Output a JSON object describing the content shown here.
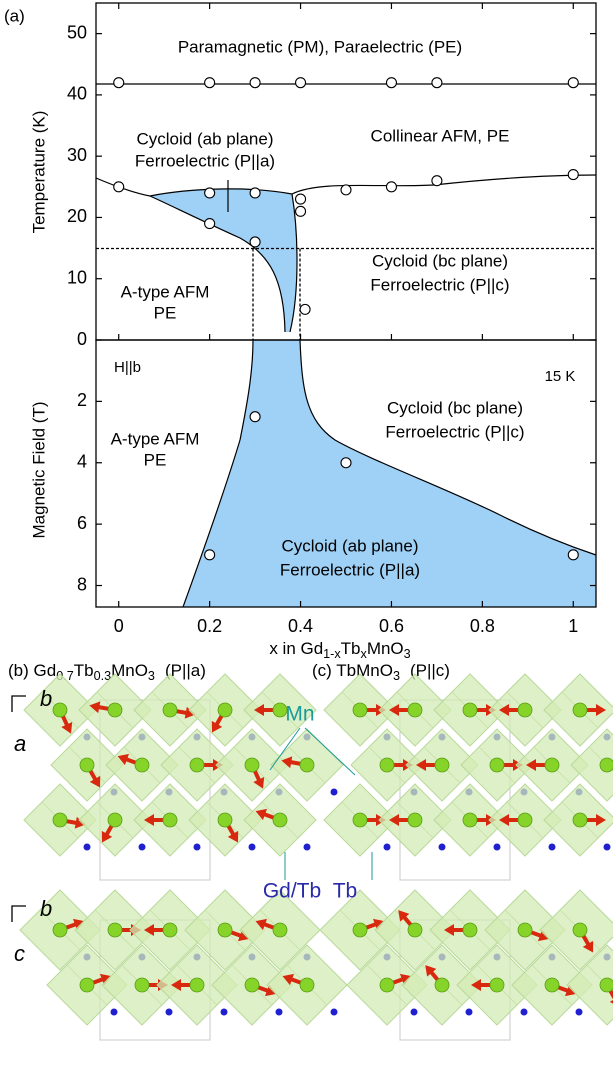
{
  "panel_label": "(a)",
  "chart_data": [
    {
      "type": "scatter",
      "y_title": "Temperature (K)",
      "x": [
        0,
        0.2,
        0.3,
        0.4,
        0.6,
        0.7,
        1.0,
        0,
        0.2,
        0.3,
        0.4,
        0.5,
        0.6,
        0.7,
        1.0,
        0.2,
        0.3,
        0.4,
        0.41
      ],
      "values": [
        42,
        42,
        42,
        42,
        42,
        42,
        42,
        25,
        24,
        24,
        23,
        24.5,
        25,
        26,
        27,
        19,
        16,
        21,
        5
      ],
      "xlim": [
        -0.05,
        1.05
      ],
      "ylim": [
        0,
        55
      ],
      "yticks": [
        0,
        10,
        20,
        30,
        40,
        50
      ],
      "annotations": [
        "Paramagnetic (PM), Paraelectric (PE)",
        "Cycloid (ab plane)",
        "Ferroelectric (P||a)",
        "Collinear AFM, PE",
        "Cycloid (bc plane)",
        "Ferroelectric (P||c)",
        "A-type AFM",
        "PE"
      ]
    },
    {
      "type": "scatter",
      "y_title": "Magnetic Field (T)",
      "x_title": [
        "x in Gd",
        "1-x",
        "Tb",
        "x",
        "MnO",
        "3"
      ],
      "x": [
        0.3,
        0.5,
        0.2,
        1.0
      ],
      "values": [
        2.5,
        4,
        7,
        7
      ],
      "xlim": [
        -0.05,
        1.05
      ],
      "xticks": [
        0,
        0.2,
        0.4,
        0.6,
        0.8,
        1
      ],
      "ylim": [
        0,
        8.7
      ],
      "y_inverted": true,
      "yticks": [
        2,
        4,
        6,
        8
      ],
      "annotations": [
        "H||b",
        "15 K",
        "Cycloid (bc plane)",
        "Ferroelectric (P||c)",
        "A-type AFM",
        "PE",
        "Cycloid (ab plane)",
        "Ferroelectric (P||a)"
      ]
    }
  ],
  "structures": {
    "panel_b": {
      "label": "(b)",
      "formula": [
        "Gd",
        "0.7",
        "Tb",
        "0.3",
        "MnO",
        "3"
      ],
      "polarization": "(P||a)"
    },
    "panel_c": {
      "label": "(c)",
      "formula": [
        "TbMnO",
        "3"
      ],
      "polarization": "(P||c)"
    },
    "axis_labels": [
      "b",
      "a",
      "b",
      "c"
    ],
    "site_labels": [
      "Mn",
      "Gd/Tb",
      "Tb"
    ]
  }
}
